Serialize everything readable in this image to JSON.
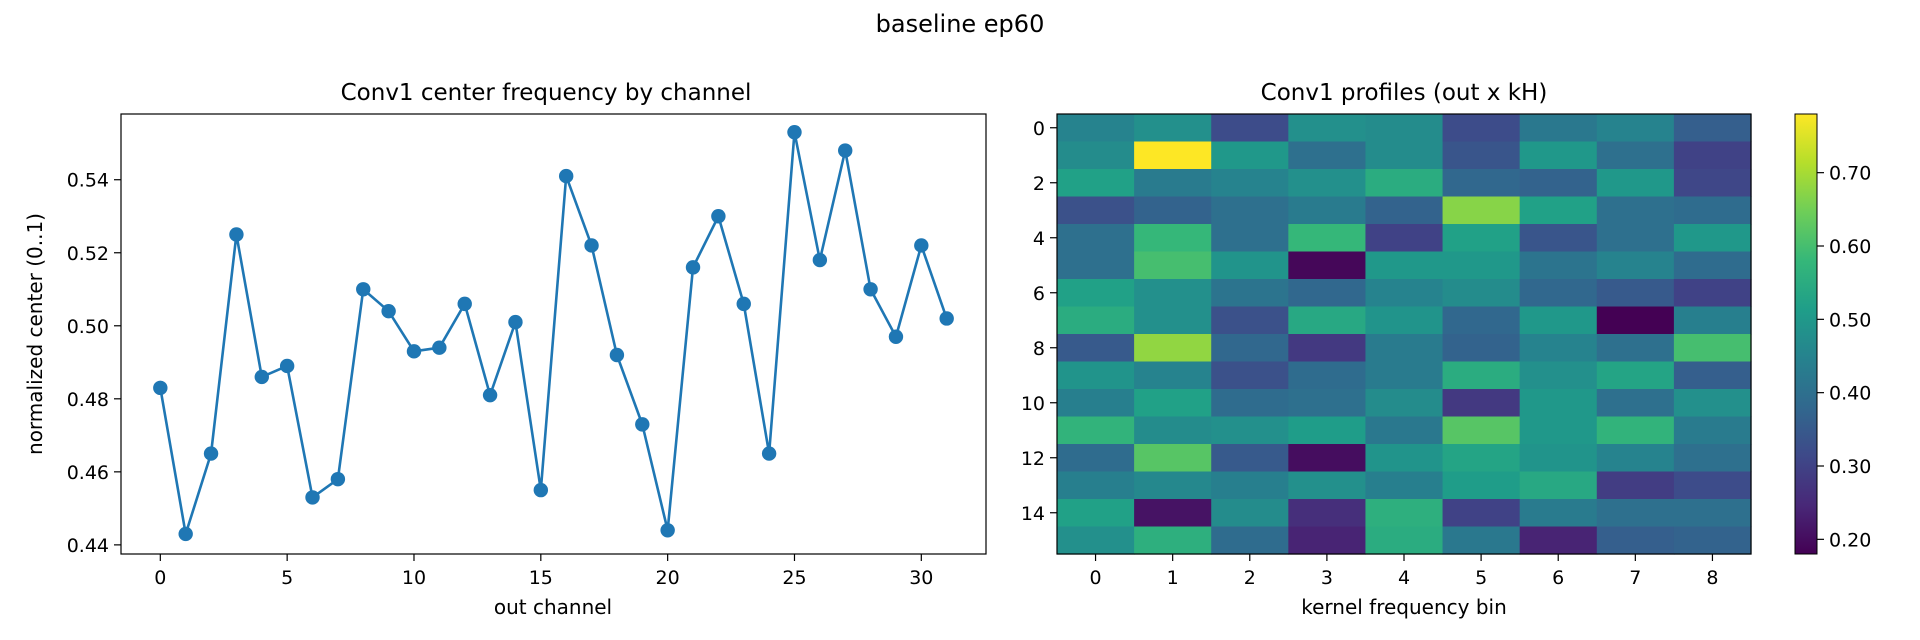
{
  "suptitle": "baseline ep60",
  "chart_data": [
    {
      "type": "line",
      "title": "Conv1 center frequency by channel",
      "xlabel": "out channel",
      "ylabel": "normalized center (0..1)",
      "x": [
        0,
        1,
        2,
        3,
        4,
        5,
        6,
        7,
        8,
        9,
        10,
        11,
        12,
        13,
        14,
        15,
        16,
        17,
        18,
        19,
        20,
        21,
        22,
        23,
        24,
        25,
        26,
        27,
        28,
        29,
        30,
        31
      ],
      "series": [
        {
          "values": [
            0.483,
            0.443,
            0.465,
            0.525,
            0.486,
            0.489,
            0.453,
            0.458,
            0.51,
            0.504,
            0.493,
            0.494,
            0.506,
            0.481,
            0.501,
            0.455,
            0.541,
            0.522,
            0.492,
            0.473,
            0.444,
            0.516,
            0.53,
            0.506,
            0.465,
            0.553,
            0.518,
            0.548,
            0.51,
            0.497,
            0.522,
            0.502
          ],
          "color": "#1f77b4"
        }
      ],
      "xlim": [
        -1.55,
        32.55
      ],
      "ylim": [
        0.4375,
        0.558
      ],
      "xticks": [
        0,
        5,
        10,
        15,
        20,
        25,
        30
      ],
      "yticks": [
        0.44,
        0.46,
        0.48,
        0.5,
        0.52,
        0.54
      ],
      "grid": false,
      "legend": false
    },
    {
      "type": "heatmap",
      "title": "Conv1 profiles (out x kH)",
      "xlabel": "kernel frequency bin",
      "ylabel": "",
      "xticks": [
        0,
        1,
        2,
        3,
        4,
        5,
        6,
        7,
        8
      ],
      "yticks": [
        0,
        2,
        4,
        6,
        8,
        10,
        12,
        14
      ],
      "colorscale": "viridis",
      "vmin": 0.18,
      "vmax": 0.78,
      "colorbar_ticks": [
        0.2,
        0.3,
        0.4,
        0.5,
        0.6,
        0.7
      ],
      "z": [
        [
          0.45,
          0.48,
          0.32,
          0.48,
          0.47,
          0.32,
          0.42,
          0.45,
          0.36
        ],
        [
          0.47,
          0.78,
          0.5,
          0.4,
          0.47,
          0.34,
          0.5,
          0.4,
          0.3
        ],
        [
          0.52,
          0.43,
          0.45,
          0.48,
          0.55,
          0.38,
          0.37,
          0.5,
          0.31
        ],
        [
          0.33,
          0.37,
          0.4,
          0.43,
          0.37,
          0.67,
          0.52,
          0.4,
          0.39
        ],
        [
          0.4,
          0.58,
          0.4,
          0.58,
          0.3,
          0.52,
          0.34,
          0.4,
          0.5
        ],
        [
          0.4,
          0.6,
          0.49,
          0.19,
          0.5,
          0.5,
          0.41,
          0.45,
          0.39
        ],
        [
          0.52,
          0.48,
          0.41,
          0.38,
          0.45,
          0.47,
          0.38,
          0.35,
          0.3
        ],
        [
          0.55,
          0.48,
          0.33,
          0.54,
          0.49,
          0.38,
          0.5,
          0.18,
          0.44
        ],
        [
          0.35,
          0.68,
          0.38,
          0.28,
          0.43,
          0.37,
          0.45,
          0.4,
          0.6
        ],
        [
          0.49,
          0.45,
          0.33,
          0.39,
          0.43,
          0.55,
          0.48,
          0.53,
          0.36
        ],
        [
          0.44,
          0.52,
          0.39,
          0.4,
          0.47,
          0.28,
          0.5,
          0.4,
          0.48
        ],
        [
          0.57,
          0.47,
          0.48,
          0.51,
          0.42,
          0.62,
          0.5,
          0.57,
          0.43
        ],
        [
          0.39,
          0.62,
          0.35,
          0.2,
          0.49,
          0.53,
          0.49,
          0.45,
          0.4
        ],
        [
          0.44,
          0.46,
          0.44,
          0.48,
          0.44,
          0.51,
          0.54,
          0.29,
          0.32
        ],
        [
          0.52,
          0.21,
          0.47,
          0.26,
          0.56,
          0.3,
          0.43,
          0.4,
          0.4
        ],
        [
          0.48,
          0.56,
          0.39,
          0.24,
          0.55,
          0.42,
          0.24,
          0.36,
          0.37
        ]
      ]
    }
  ]
}
